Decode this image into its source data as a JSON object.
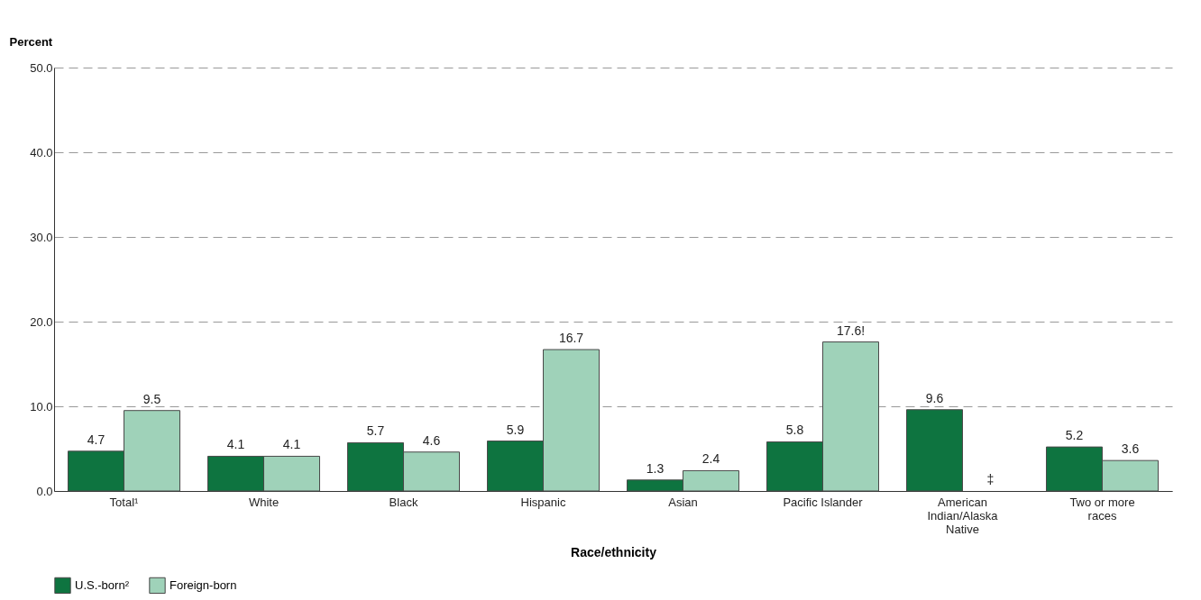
{
  "chart_data": {
    "type": "bar",
    "xlabel": "Race/ethnicity",
    "ylabel": "Percent",
    "categories": [
      "Total¹",
      "White",
      "Black",
      "Hispanic",
      "Asian",
      "Pacific Islander",
      "American Indian/Alaska Native",
      "Two or more races"
    ],
    "series": [
      {
        "name": "U.S.-born²",
        "color": "#0e7440",
        "values": [
          4.7,
          4.1,
          5.7,
          5.9,
          1.3,
          5.8,
          9.6,
          5.2
        ],
        "value_labels": [
          "4.7",
          "4.1",
          "5.7",
          "5.9",
          "1.3",
          "5.8",
          "9.6",
          "5.2"
        ]
      },
      {
        "name": "Foreign-born",
        "color": "#9fd2b9",
        "values": [
          9.5,
          4.1,
          4.6,
          16.7,
          2.4,
          17.6,
          null,
          3.6
        ],
        "value_labels": [
          "9.5",
          "4.1",
          "4.6",
          "16.7",
          "2.4",
          "17.6!",
          "‡",
          "3.6"
        ]
      }
    ],
    "ylim": [
      0,
      50
    ],
    "yticks": [
      {
        "value": 0,
        "label": "0.0"
      },
      {
        "value": 10,
        "label": "10.0"
      },
      {
        "value": 20,
        "label": "20.0"
      },
      {
        "value": 30,
        "label": "30.0"
      },
      {
        "value": 40,
        "label": "40.0"
      },
      {
        "value": 50,
        "label": "50.0"
      }
    ],
    "grid": "y",
    "legend": "bottom"
  }
}
